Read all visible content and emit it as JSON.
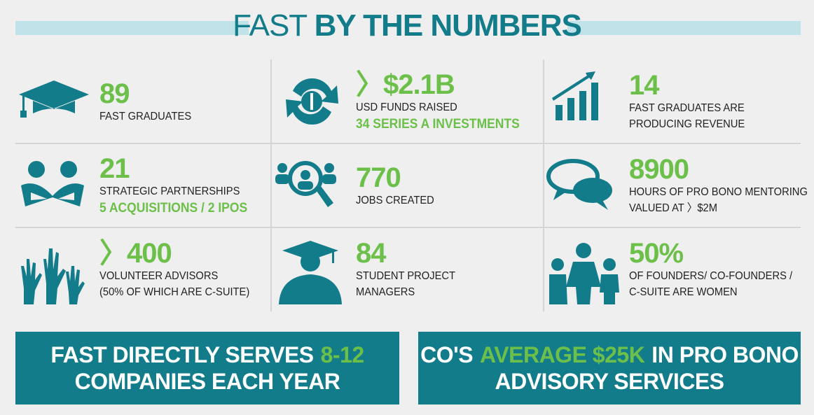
{
  "header": {
    "title_light": "FAST",
    "title_bold": "BY THE NUMBERS"
  },
  "stats": [
    {
      "value": "89",
      "lines": [
        "FAST GRADUATES"
      ]
    },
    {
      "value": "〉$2.1B",
      "lines": [
        "USD FUNDS RAISED"
      ],
      "highlight": "34 SERIES A INVESTMENTS"
    },
    {
      "value": "14",
      "lines": [
        "FAST GRADUATES ARE",
        "PRODUCING REVENUE"
      ]
    },
    {
      "value": "21",
      "lines": [
        "STRATEGIC PARTNERSHIPS"
      ],
      "highlight": "5 ACQUISITIONS / 2 IPOS"
    },
    {
      "value": "770",
      "lines": [
        "JOBS CREATED"
      ]
    },
    {
      "value": "8900",
      "lines": [
        "HOURS OF PRO BONO MENTORING",
        "VALUED AT 〉$2M"
      ]
    },
    {
      "value": "〉400",
      "lines": [
        "VOLUNTEER ADVISORS",
        "(50% OF WHICH ARE C-SUITE)"
      ]
    },
    {
      "value": "84",
      "lines": [
        "STUDENT PROJECT",
        "MANAGERS"
      ]
    },
    {
      "value": "50%",
      "lines": [
        "OF FOUNDERS/ CO-FOUNDERS /",
        "C-SUITE ARE WOMEN"
      ]
    }
  ],
  "banners": [
    {
      "lines": [
        [
          {
            "text": "FAST DIRECTLY SERVES"
          },
          {
            "text": "8-12",
            "highlight": true
          }
        ],
        [
          {
            "text": "COMPANIES EACH YEAR"
          }
        ]
      ]
    },
    {
      "lines": [
        [
          {
            "text": "CO'S"
          },
          {
            "text": "AVERAGE $25K",
            "highlight": true
          },
          {
            "text": "IN PRO BONO"
          }
        ],
        [
          {
            "text": "ADVISORY SERVICES"
          }
        ]
      ]
    }
  ]
}
